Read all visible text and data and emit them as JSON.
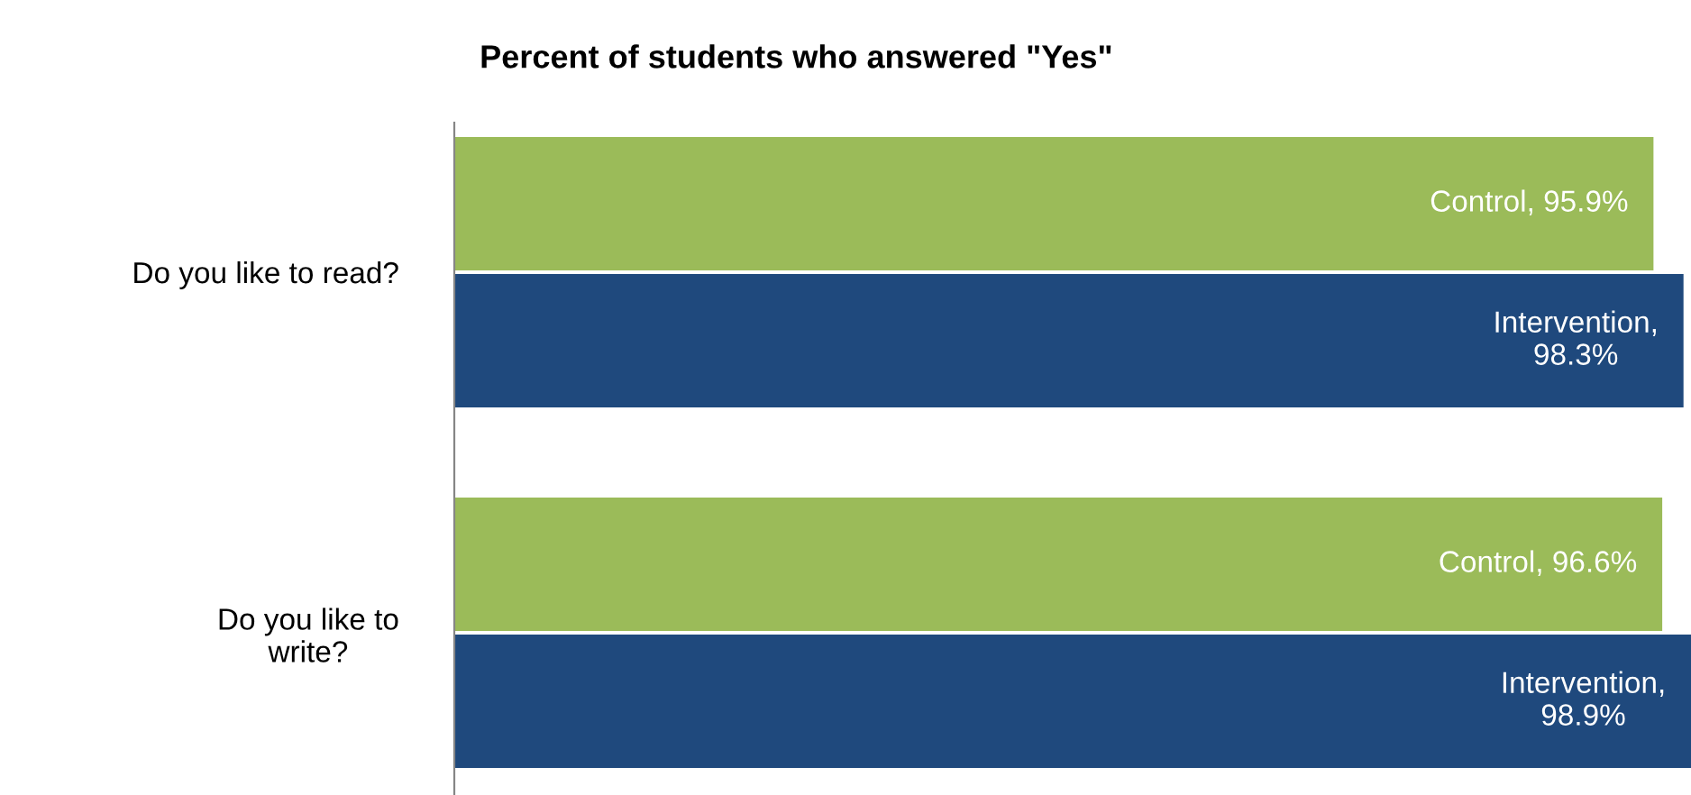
{
  "chart_data": {
    "type": "bar",
    "orientation": "horizontal",
    "title": "Percent of students who answered \"Yes\"",
    "categories": [
      "Do you like to read?",
      "Do you like to\nwrite?"
    ],
    "series": [
      {
        "color": "#9bbb59",
        "values": [
          95.9,
          96.6
        ],
        "value_labels": [
          "Control, 95.9%",
          "Control, 96.6%"
        ]
      },
      {
        "color": "#1f497d",
        "values": [
          98.3,
          98.9
        ],
        "value_labels": [
          "Intervention,\n98.3%",
          "Intervention,\n98.9%"
        ]
      }
    ],
    "xlim": [
      0,
      98.9
    ],
    "tick_labels": "y",
    "grid": false,
    "legend": false
  }
}
